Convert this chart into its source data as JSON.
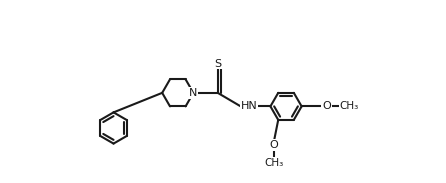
{
  "bg": "#ffffff",
  "lc": "#1a1a1a",
  "lw": 1.5,
  "fs": 8.0,
  "figsize": [
    4.46,
    1.83
  ],
  "dpi": 100,
  "xlim": [
    0.0,
    10.5
  ],
  "ylim": [
    -3.5,
    3.0
  ]
}
